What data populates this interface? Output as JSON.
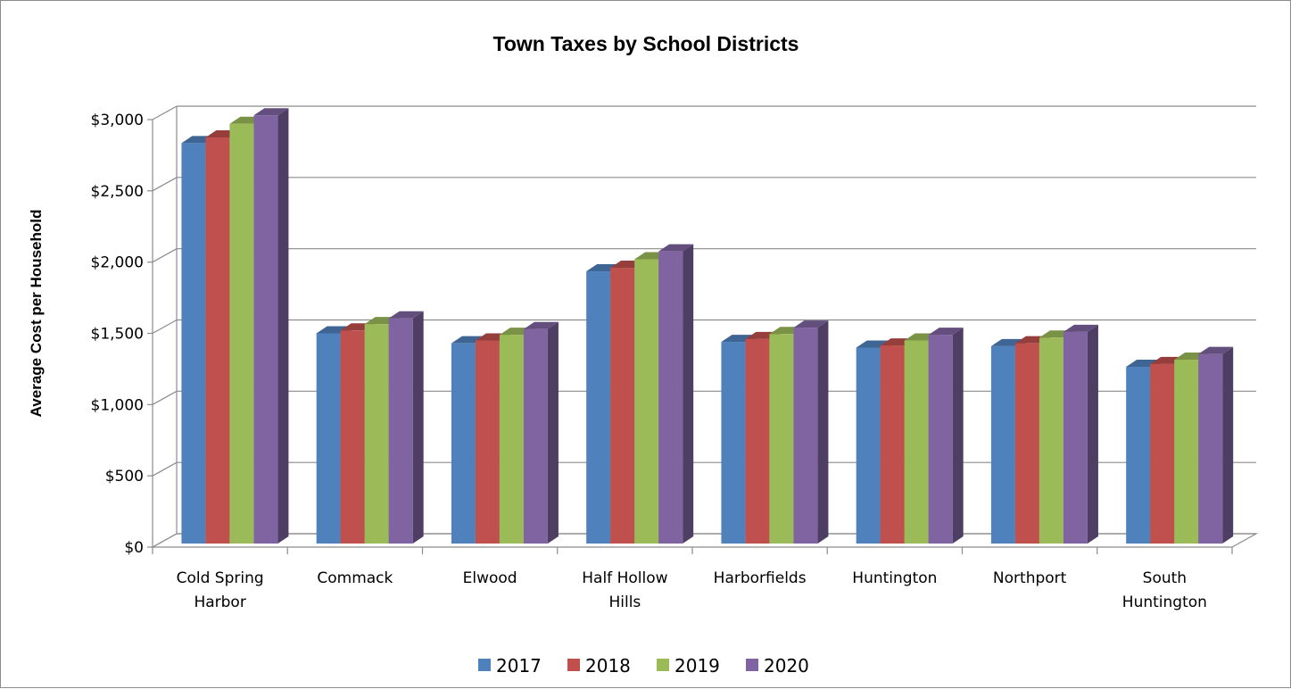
{
  "chart_data": {
    "type": "bar",
    "title": "Town Taxes by School Districts",
    "xlabel": "",
    "ylabel": "Average Cost per Household",
    "ylim": [
      0,
      3000
    ],
    "yticks": [
      "$0",
      "$500",
      "$1,000",
      "$1,500",
      "$2,000",
      "$2,500",
      "$3,000"
    ],
    "yticks_values": [
      0,
      500,
      1000,
      1500,
      2000,
      2500,
      3000
    ],
    "categories": [
      [
        "Cold Spring",
        "Harbor"
      ],
      [
        "Commack"
      ],
      [
        "Elwood"
      ],
      [
        "Half Hollow",
        "Hills"
      ],
      [
        "Harborfields"
      ],
      [
        "Huntington"
      ],
      [
        "Northport"
      ],
      [
        "South",
        "Huntington"
      ]
    ],
    "series": [
      {
        "name": "2017",
        "color": "#4F81BD",
        "values": [
          2810,
          1475,
          1405,
          1910,
          1415,
          1375,
          1385,
          1240
        ]
      },
      {
        "name": "2018",
        "color": "#C0504D",
        "values": [
          2850,
          1495,
          1425,
          1935,
          1435,
          1390,
          1405,
          1260
        ]
      },
      {
        "name": "2019",
        "color": "#9BBB59",
        "values": [
          2945,
          1540,
          1465,
          1995,
          1470,
          1425,
          1445,
          1290
        ]
      },
      {
        "name": "2020",
        "color": "#8064A2",
        "values": [
          3005,
          1580,
          1505,
          2050,
          1515,
          1465,
          1485,
          1330
        ]
      }
    ],
    "grid": true,
    "legend_position": "bottom"
  }
}
